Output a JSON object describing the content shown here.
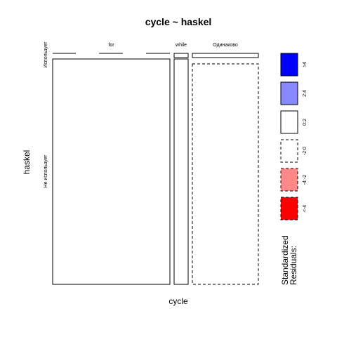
{
  "chart_data": {
    "type": "mosaic",
    "title": "cycle ~ haskel",
    "xlabel": "cycle",
    "ylabel": "haskel",
    "x_levels": [
      "for",
      "while",
      "Одинаково"
    ],
    "y_levels": [
      "Использует",
      "Не использует"
    ],
    "cells": [
      {
        "x": "for",
        "y": "Использует",
        "residual_band": "0:2",
        "zero": true
      },
      {
        "x": "for",
        "y": "Не использует",
        "residual_band": "0:2",
        "zero": false
      },
      {
        "x": "while",
        "y": "Использует",
        "residual_band": "0:2",
        "zero": false
      },
      {
        "x": "while",
        "y": "Не использует",
        "residual_band": "0:2",
        "zero": false
      },
      {
        "x": "Одинаково",
        "y": "Использует",
        "residual_band": "0:2",
        "zero": false
      },
      {
        "x": "Одинаково",
        "y": "Не использует",
        "residual_band": "-2:0",
        "zero": false
      }
    ],
    "legend": {
      "title": "Standardized Residuals:",
      "placement": "right",
      "items": [
        {
          "label": ">4",
          "color": "#0000ff",
          "dashed": false
        },
        {
          "label": "2:4",
          "color": "#8888ff",
          "dashed": false
        },
        {
          "label": "0:2",
          "color": "#ffffff",
          "dashed": false
        },
        {
          "label": "-2:0",
          "color": "#ffffff",
          "dashed": true
        },
        {
          "label": "-4:-2",
          "color": "#ff8888",
          "dashed": true
        },
        {
          "label": "<-4",
          "color": "#ff0000",
          "dashed": true
        }
      ]
    }
  }
}
